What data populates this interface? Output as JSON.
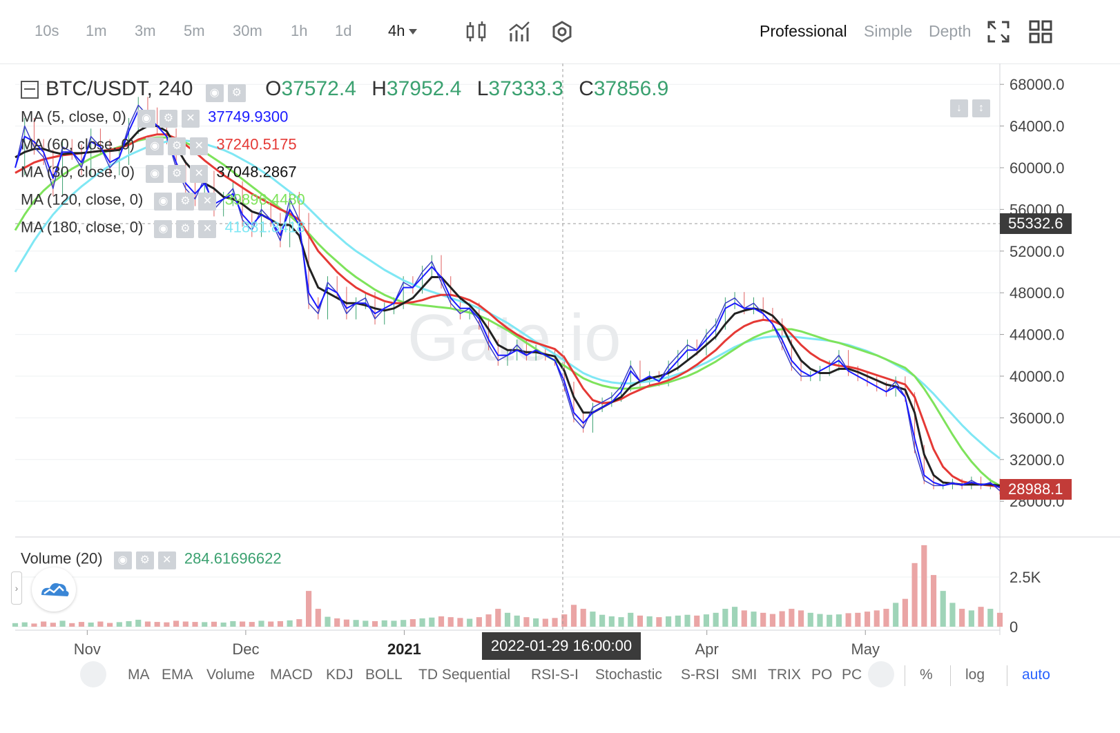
{
  "toolbar": {
    "intervals": [
      "10s",
      "1m",
      "3m",
      "5m",
      "30m",
      "1h",
      "1d",
      "4h"
    ],
    "active_interval": "4h",
    "modes": [
      "Professional",
      "Simple",
      "Depth"
    ],
    "active_mode": "Professional"
  },
  "legend": {
    "symbol": "BTC/USDT, 240",
    "open_label": "O",
    "open": "37572.4",
    "high_label": "H",
    "high": "37952.4",
    "low_label": "L",
    "low": "37333.3",
    "close_label": "C",
    "close": "37856.9",
    "ma": [
      {
        "label": "MA (5, close, 0)",
        "value": "37749.9300",
        "color": "#1a1aff"
      },
      {
        "label": "MA (60, close, 0)",
        "value": "37240.5175",
        "color": "#e53935"
      },
      {
        "label": "MA (30, close, 0)",
        "value": "37048.2867",
        "color": "#111111"
      },
      {
        "label": "MA (120, close, 0)",
        "value": "39896.4480",
        "color": "#7ee35b"
      },
      {
        "label": "MA (180, close, 0)",
        "value": "41881.8418",
        "color": "#7fe7f4"
      }
    ],
    "volume_label": "Volume (20)",
    "volume_value": "284.61696622"
  },
  "price_tags": {
    "crosshair": "55332.6",
    "last": "28988.1",
    "crosshair_color": "#3b3b3b",
    "last_color": "#c23b38"
  },
  "crosshair_time": "2022-01-29 16:00:00",
  "watermark": "Gate.io",
  "bottom": {
    "indicators": [
      "MA",
      "EMA",
      "Volume",
      "MACD",
      "KDJ",
      "BOLL",
      "TD Sequential",
      "RSI-S-I",
      "Stochastic",
      "S-RSI",
      "SMI",
      "TRIX",
      "PO",
      "PC"
    ],
    "percent": "%",
    "log": "log",
    "auto": "auto"
  },
  "chart_data": {
    "type": "line",
    "title": "BTC/USDT, 240",
    "y_ticks": [
      68000.0,
      64000.0,
      60000.0,
      56000.0,
      52000.0,
      48000.0,
      44000.0,
      40000.0,
      36000.0,
      32000.0,
      28000.0
    ],
    "y_tick_labels": [
      "68000.0",
      "64000.0",
      "60000.0",
      "56000.0",
      "52000.0",
      "48000.0",
      "44000.0",
      "40000.0",
      "36000.0",
      "32000.0",
      "28000.0"
    ],
    "ylim": [
      24700,
      70000
    ],
    "x_ticks": [
      "Nov",
      "Dec",
      "2021",
      "Apr",
      "May"
    ],
    "volume_ticks": [
      "2.5K",
      "0"
    ],
    "volume_ylim": [
      0,
      4200
    ],
    "colors": {
      "up": "#3ba170",
      "down": "#e06060",
      "close": "#3a3fc4",
      "ma5": "#1a1aff",
      "ma30": "#222222",
      "ma60": "#e53935",
      "ma120": "#7ee35b",
      "ma180": "#7fe7f4"
    },
    "series": [
      {
        "name": "close",
        "values": [
          60000,
          64000,
          62000,
          61000,
          58000,
          62000,
          61500,
          60000,
          63000,
          62000,
          60000,
          61000,
          64000,
          66000,
          65000,
          64000,
          63000,
          60000,
          58000,
          57000,
          59000,
          56000,
          57000,
          58000,
          55000,
          54000,
          56000,
          55000,
          53000,
          57000,
          55000,
          47000,
          46000,
          49000,
          48000,
          46000,
          47000,
          47500,
          45500,
          46500,
          47000,
          49000,
          48500,
          50000,
          51000,
          49000,
          47000,
          46000,
          46500,
          45000,
          43000,
          41500,
          42000,
          43000,
          42000,
          42500,
          42000,
          41500,
          39000,
          36000,
          35000,
          37000,
          37500,
          38000,
          39000,
          41000,
          39500,
          40000,
          39500,
          41000,
          42000,
          43000,
          42500,
          44000,
          45000,
          47000,
          47500,
          46500,
          47000,
          46000,
          45000,
          43000,
          41000,
          40000,
          40000,
          40500,
          41000,
          42000,
          40500,
          40000,
          39500,
          39000,
          38500,
          39500,
          38000,
          33000,
          30000,
          29500,
          29500,
          29800,
          29500,
          30000,
          29500,
          29800,
          29000
        ]
      },
      {
        "name": "MA (5, close, 0)",
        "values": [
          60000,
          63000,
          62500,
          61500,
          59000,
          61500,
          61500,
          60500,
          62500,
          62000,
          60500,
          61000,
          63500,
          65500,
          65000,
          64000,
          63000,
          60500,
          58500,
          57500,
          58500,
          56500,
          57000,
          57500,
          55500,
          54500,
          55500,
          55000,
          53500,
          56000,
          54500,
          48000,
          46500,
          48500,
          48000,
          46500,
          47000,
          47000,
          46000,
          46500,
          47000,
          48500,
          48500,
          49500,
          50500,
          49500,
          47500,
          46500,
          46500,
          45500,
          43500,
          42000,
          42000,
          42500,
          42000,
          42500,
          42000,
          41500,
          39500,
          36500,
          35500,
          36500,
          37000,
          37500,
          38500,
          40500,
          39500,
          40000,
          39500,
          40500,
          41500,
          42500,
          42500,
          43500,
          44500,
          46500,
          47000,
          46500,
          46500,
          46000,
          45000,
          43500,
          41500,
          40500,
          40000,
          40500,
          41000,
          41500,
          40500,
          40000,
          39500,
          39000,
          38500,
          39000,
          38000,
          34000,
          30500,
          29800,
          29500,
          29700,
          29600,
          29800,
          29600,
          29700,
          29300
        ]
      },
      {
        "name": "MA (30, close, 0)",
        "values": [
          61000,
          61500,
          61800,
          61800,
          61500,
          61300,
          61400,
          61400,
          61500,
          61600,
          61600,
          61700,
          62500,
          63500,
          64000,
          64000,
          63500,
          62000,
          60500,
          59500,
          58500,
          58000,
          57200,
          57000,
          56500,
          55800,
          55500,
          55000,
          54500,
          54500,
          53500,
          50500,
          48500,
          48000,
          47500,
          47000,
          47000,
          46800,
          46500,
          46300,
          46500,
          47000,
          47500,
          48500,
          49500,
          49500,
          48500,
          47500,
          46800,
          45800,
          44500,
          43000,
          42500,
          42500,
          42300,
          42300,
          42100,
          41900,
          40500,
          38000,
          36500,
          36500,
          37000,
          37500,
          38000,
          39000,
          39500,
          39800,
          40000,
          40300,
          40800,
          41500,
          42200,
          43000,
          43800,
          45000,
          46000,
          46300,
          46500,
          46300,
          45800,
          44800,
          43000,
          41500,
          40700,
          40300,
          40300,
          40700,
          40700,
          40400,
          40000,
          39600,
          39200,
          39000,
          38700,
          36500,
          32500,
          30500,
          29800,
          29700,
          29600,
          29600,
          29600,
          29600,
          29500
        ]
      },
      {
        "name": "MA (60, close, 0)",
        "values": [
          59500,
          60000,
          60500,
          60800,
          61000,
          61200,
          61300,
          61400,
          61500,
          61600,
          61700,
          61900,
          62200,
          62700,
          63000,
          63200,
          63200,
          62800,
          62200,
          61500,
          60700,
          60000,
          59300,
          58700,
          58100,
          57500,
          57000,
          56500,
          56000,
          55600,
          55000,
          53500,
          52000,
          51000,
          50000,
          49200,
          48500,
          48000,
          47600,
          47200,
          47000,
          47000,
          47100,
          47300,
          47600,
          47800,
          47800,
          47600,
          47300,
          46800,
          46100,
          45300,
          44600,
          44000,
          43500,
          43200,
          42900,
          42600,
          41800,
          40300,
          38800,
          37700,
          37400,
          37500,
          37800,
          38300,
          38700,
          39100,
          39300,
          39600,
          40000,
          40500,
          41100,
          41800,
          42500,
          43400,
          44200,
          44800,
          45200,
          45400,
          45300,
          44900,
          44000,
          43000,
          42200,
          41600,
          41200,
          41000,
          40900,
          40700,
          40400,
          40100,
          39800,
          39500,
          39200,
          38000,
          35500,
          33000,
          31300,
          30400,
          29900,
          29700,
          29600,
          29500,
          29400
        ]
      },
      {
        "name": "MA (120, close, 0)",
        "values": [
          54000,
          55500,
          56800,
          57800,
          58600,
          59300,
          59900,
          60400,
          60900,
          61300,
          61700,
          62000,
          62300,
          62600,
          62800,
          62900,
          62900,
          62700,
          62400,
          62000,
          61500,
          60900,
          60300,
          59600,
          58900,
          58200,
          57500,
          56800,
          56100,
          55400,
          54600,
          53700,
          52700,
          51800,
          51000,
          50200,
          49500,
          48900,
          48300,
          47800,
          47400,
          47100,
          46900,
          46800,
          46700,
          46600,
          46500,
          46300,
          46100,
          45800,
          45400,
          44900,
          44400,
          43800,
          43200,
          42600,
          42000,
          41500,
          41000,
          40400,
          39800,
          39400,
          39100,
          38900,
          38800,
          38800,
          38900,
          39000,
          39200,
          39400,
          39700,
          40000,
          40400,
          40900,
          41400,
          42000,
          42600,
          43200,
          43700,
          44100,
          44400,
          44500,
          44500,
          44300,
          44000,
          43700,
          43400,
          43200,
          42900,
          42600,
          42300,
          42000,
          41600,
          41200,
          40800,
          40000,
          38800,
          37400,
          35900,
          34400,
          33000,
          31800,
          30800,
          30000,
          29500
        ]
      },
      {
        "name": "MA (180, close, 0)",
        "values": [
          50000,
          51500,
          53000,
          54300,
          55500,
          56500,
          57400,
          58200,
          58900,
          59600,
          60200,
          60700,
          61200,
          61600,
          62000,
          62300,
          62500,
          62600,
          62600,
          62500,
          62300,
          62000,
          61700,
          61300,
          60800,
          60300,
          59700,
          59100,
          58400,
          57700,
          57000,
          56100,
          55200,
          54300,
          53500,
          52700,
          52000,
          51400,
          50800,
          50200,
          49700,
          49200,
          48800,
          48400,
          48100,
          47800,
          47500,
          47200,
          46900,
          46500,
          46100,
          45600,
          45100,
          44500,
          43900,
          43300,
          42700,
          42100,
          41500,
          40900,
          40300,
          39900,
          39600,
          39400,
          39300,
          39300,
          39400,
          39500,
          39700,
          39900,
          40200,
          40500,
          40900,
          41300,
          41800,
          42300,
          42800,
          43200,
          43500,
          43700,
          43800,
          43800,
          43800,
          43700,
          43600,
          43500,
          43400,
          43200,
          43000,
          42700,
          42400,
          42000,
          41600,
          41100,
          40600,
          40000,
          39200,
          38300,
          37300,
          36300,
          35300,
          34400,
          33600,
          32800,
          32100
        ]
      }
    ],
    "volume": [
      180,
      220,
      160,
      260,
      200,
      300,
      180,
      240,
      210,
      260,
      190,
      230,
      280,
      350,
      260,
      240,
      220,
      300,
      260,
      240,
      230,
      250,
      210,
      280,
      260,
      240,
      300,
      260,
      280,
      320,
      380,
      1800,
      900,
      500,
      420,
      360,
      340,
      300,
      280,
      320,
      300,
      340,
      380,
      420,
      460,
      520,
      480,
      440,
      400,
      480,
      620,
      900,
      700,
      560,
      480,
      420,
      400,
      440,
      620,
      1100,
      900,
      760,
      600,
      520,
      480,
      700,
      560,
      520,
      480,
      520,
      560,
      600,
      560,
      620,
      700,
      900,
      1000,
      820,
      760,
      700,
      640,
      780,
      900,
      820,
      700,
      640,
      600,
      620,
      680,
      700,
      760,
      820,
      900,
      1200,
      1400,
      3200,
      4100,
      2600,
      1800,
      1200,
      900,
      820,
      1000,
      900,
      700
    ]
  }
}
